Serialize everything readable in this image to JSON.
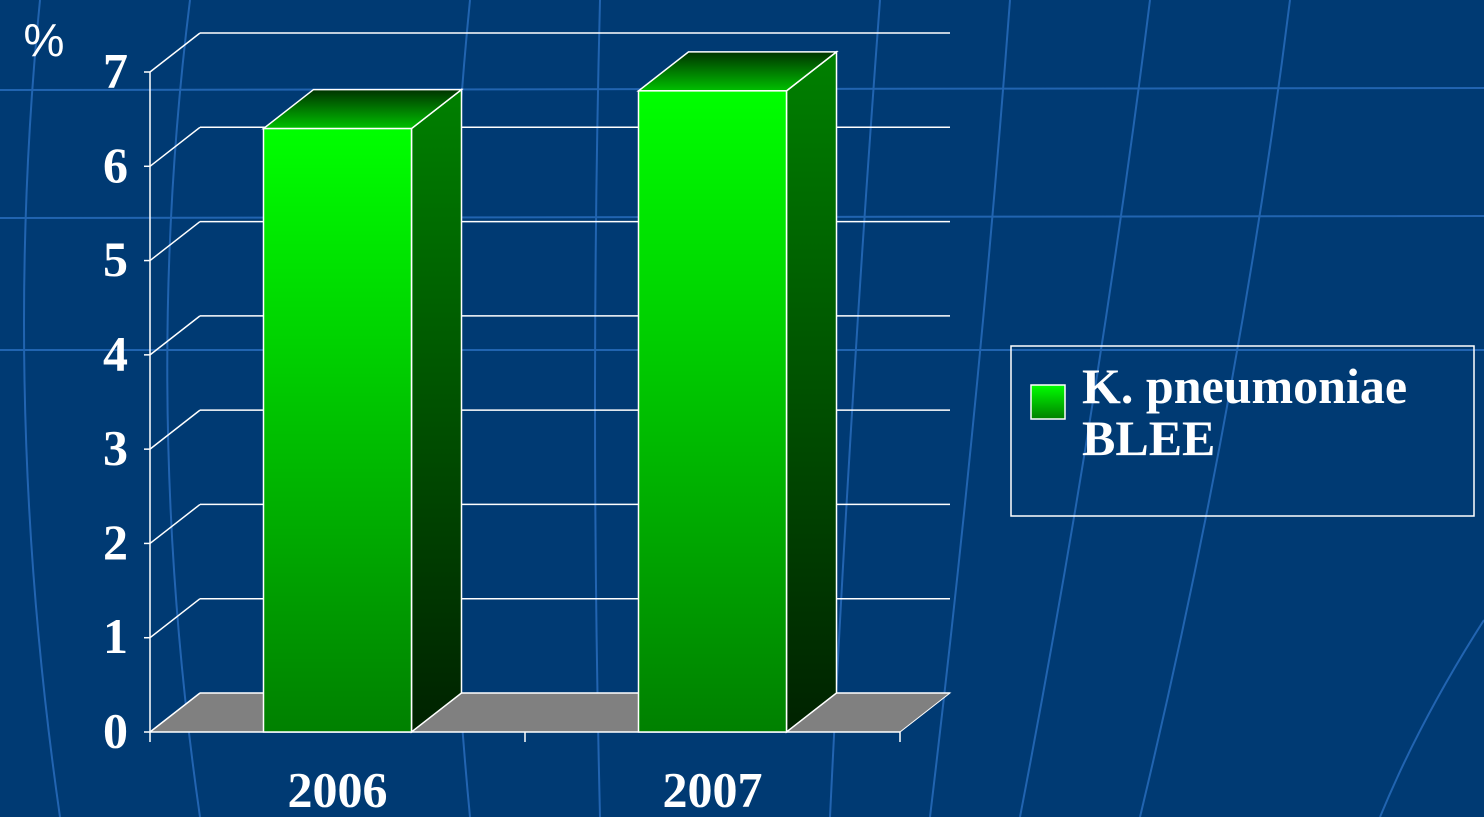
{
  "chart_data": {
    "type": "bar3d",
    "y_label": "%",
    "categories": [
      "2006",
      "2007"
    ],
    "series": [
      {
        "name": "K. pneumoniae BLEE",
        "color": "#00ff00",
        "values": [
          6.4,
          6.8
        ]
      }
    ],
    "ylim": [
      0,
      7
    ],
    "yticks": [
      0,
      1,
      2,
      3,
      4,
      5,
      6,
      7
    ],
    "grid": true,
    "legend": "right"
  }
}
